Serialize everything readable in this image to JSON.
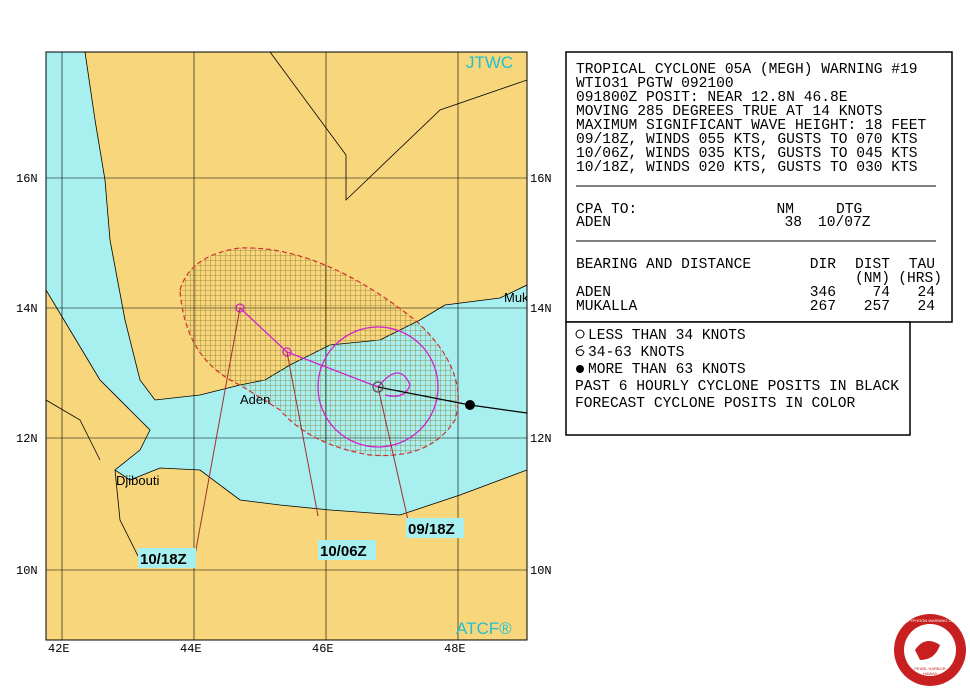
{
  "map": {
    "agency": "JTWC",
    "footer": "ATCF®",
    "places": [
      "Aden",
      "Djibouti",
      "Muk"
    ],
    "forecast_labels": [
      "10/18Z",
      "10/06Z",
      "09/18Z"
    ],
    "lat_labels": [
      "16N",
      "14N",
      "12N",
      "10N"
    ],
    "lon_labels": [
      "42E",
      "44E",
      "46E",
      "48E"
    ]
  },
  "warning": {
    "lines": [
      "TROPICAL CYCLONE 05A (MEGH) WARNING #19",
      "WTIO31 PGTW 092100",
      "091800Z POSIT: NEAR 12.8N 46.8E",
      "MOVING 285 DEGREES TRUE AT 14 KNOTS",
      "MAXIMUM SIGNIFICANT WAVE HEIGHT: 18 FEET",
      "09/18Z, WINDS 055 KTS, GUSTS TO 070 KTS",
      "10/06Z, WINDS 035 KTS, GUSTS TO 045 KTS",
      "10/18Z, WINDS 020 KTS, GUSTS TO 030 KTS"
    ]
  },
  "cpa": {
    "header": [
      "CPA TO:",
      "NM",
      "DTG"
    ],
    "rows": [
      [
        "ADEN",
        "38",
        "10/07Z"
      ]
    ]
  },
  "bearing": {
    "header": [
      "BEARING AND DISTANCE",
      "DIR",
      "DIST",
      "TAU"
    ],
    "subheader": [
      "(NM)",
      "(HRS)"
    ],
    "rows": [
      [
        "ADEN",
        "346",
        "74",
        "24"
      ],
      [
        "MUKALLA",
        "267",
        "257",
        "24"
      ]
    ]
  },
  "legend": {
    "items": [
      "LESS THAN 34 KNOTS",
      "34-63 KNOTS",
      "MORE THAN 63 KNOTS",
      "PAST 6 HOURLY CYCLONE POSITS IN BLACK",
      "FORECAST CYCLONE POSITS IN COLOR"
    ]
  },
  "logo": {
    "name": "JOINT TYPHOON WARNING CENTER",
    "location": "PEARL HARBOR",
    "state": "HAWAII"
  }
}
